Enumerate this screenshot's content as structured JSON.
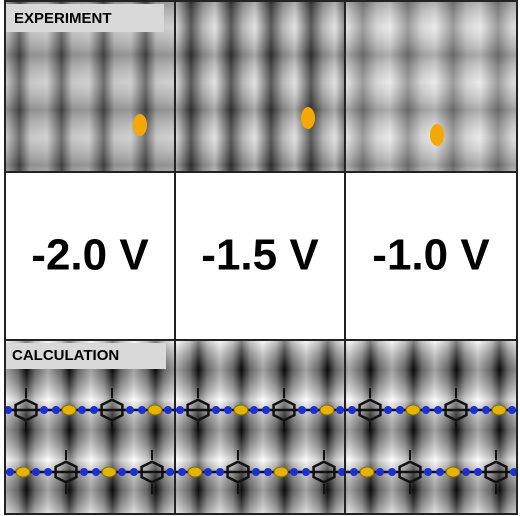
{
  "labels": {
    "experiment": "EXPERIMENT",
    "calculation": "CALCULATION"
  },
  "voltages": [
    "-2.0 V",
    "-1.5 V",
    "-1.0 V"
  ]
}
